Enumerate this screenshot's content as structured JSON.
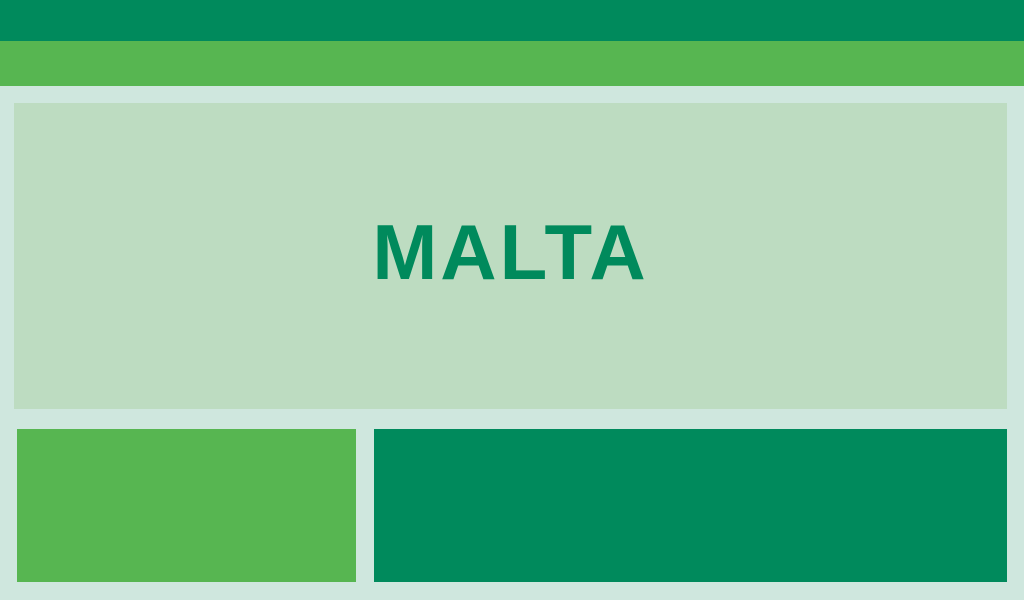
{
  "hero": {
    "title": "MALTA"
  },
  "colors": {
    "background": "#cfe7de",
    "dark_green": "#008a5c",
    "light_green": "#57b651",
    "hero_background": "#bddcc1"
  }
}
